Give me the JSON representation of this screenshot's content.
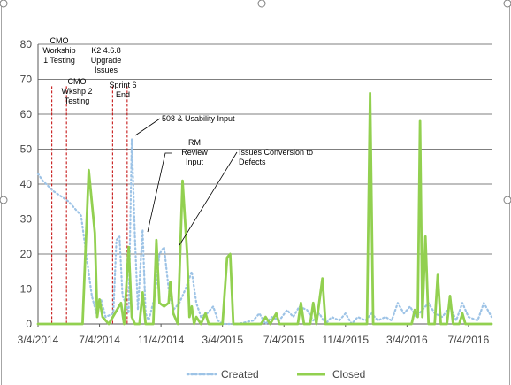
{
  "chart_data": {
    "type": "line",
    "title": "",
    "xlabel": "",
    "ylabel": "",
    "ylim": [
      0,
      80
    ],
    "y_ticks": [
      "0",
      "10",
      "20",
      "30",
      "40",
      "50",
      "60",
      "70",
      "80"
    ],
    "x_tick_labels": [
      "3/4/2014",
      "7/4/2014",
      "11/4/2014",
      "3/4/2015",
      "7/4/2015",
      "11/4/2015",
      "3/4/2016",
      "7/4/2016"
    ],
    "x_range_months": [
      0,
      29.5
    ],
    "grid": true,
    "legend_position": "bottom",
    "series": [
      {
        "name": "Created",
        "style": "dotted",
        "color": "#9DC3E6",
        "points": [
          [
            0,
            43
          ],
          [
            0.3,
            41
          ],
          [
            1,
            38
          ],
          [
            2,
            35
          ],
          [
            2.8,
            31
          ],
          [
            3.2,
            18
          ],
          [
            3.5,
            8
          ],
          [
            3.8,
            3
          ],
          [
            4.1,
            7
          ],
          [
            4.4,
            2
          ],
          [
            4.9,
            3
          ],
          [
            5.1,
            24
          ],
          [
            5.3,
            25
          ],
          [
            5.5,
            8
          ],
          [
            5.7,
            6
          ],
          [
            5.9,
            3
          ],
          [
            6.1,
            53
          ],
          [
            6.3,
            25
          ],
          [
            6.5,
            4
          ],
          [
            6.8,
            27
          ],
          [
            7.0,
            3
          ],
          [
            7.2,
            1
          ],
          [
            7.6,
            8
          ],
          [
            7.9,
            20
          ],
          [
            8.2,
            22
          ],
          [
            8.5,
            10
          ],
          [
            8.8,
            4
          ],
          [
            9.2,
            6
          ],
          [
            9.6,
            10
          ],
          [
            10.0,
            15
          ],
          [
            10.3,
            6
          ],
          [
            10.6,
            2
          ],
          [
            11.0,
            3
          ],
          [
            11.4,
            5
          ],
          [
            11.7,
            1
          ],
          [
            12.0,
            0
          ],
          [
            13.0,
            0
          ],
          [
            14.0,
            1
          ],
          [
            14.4,
            3
          ],
          [
            14.8,
            0
          ],
          [
            15.2,
            2
          ],
          [
            15.7,
            1
          ],
          [
            16.2,
            4
          ],
          [
            16.6,
            2
          ],
          [
            17.0,
            5
          ],
          [
            17.5,
            4
          ],
          [
            17.9,
            1
          ],
          [
            18.3,
            3
          ],
          [
            18.7,
            0
          ],
          [
            19.1,
            2
          ],
          [
            19.6,
            1
          ],
          [
            20.0,
            3
          ],
          [
            20.4,
            0
          ],
          [
            20.8,
            2
          ],
          [
            21.3,
            1
          ],
          [
            21.7,
            3
          ],
          [
            22.1,
            1
          ],
          [
            22.6,
            2
          ],
          [
            23.0,
            1
          ],
          [
            23.4,
            6
          ],
          [
            23.8,
            3
          ],
          [
            24.2,
            5
          ],
          [
            24.6,
            2
          ],
          [
            25.0,
            4
          ],
          [
            25.4,
            6
          ],
          [
            25.8,
            3
          ],
          [
            26.3,
            2
          ],
          [
            26.8,
            5
          ],
          [
            27.2,
            1
          ],
          [
            27.6,
            6
          ],
          [
            28.0,
            2
          ],
          [
            28.6,
            1
          ],
          [
            29.0,
            6
          ],
          [
            29.5,
            2
          ]
        ]
      },
      {
        "name": "Closed",
        "style": "solid",
        "color": "#92D050",
        "points": [
          [
            0,
            0
          ],
          [
            2.9,
            0
          ],
          [
            3.3,
            44
          ],
          [
            3.7,
            26
          ],
          [
            3.85,
            2
          ],
          [
            4.0,
            7
          ],
          [
            4.2,
            2
          ],
          [
            4.6,
            0
          ],
          [
            5.4,
            6
          ],
          [
            5.6,
            0
          ],
          [
            5.9,
            22
          ],
          [
            6.1,
            2
          ],
          [
            6.3,
            0
          ],
          [
            6.6,
            0
          ],
          [
            6.8,
            9
          ],
          [
            7.0,
            0
          ],
          [
            7.5,
            0
          ],
          [
            7.7,
            24
          ],
          [
            7.9,
            6
          ],
          [
            8.2,
            5
          ],
          [
            8.5,
            6
          ],
          [
            8.6,
            12
          ],
          [
            8.8,
            3
          ],
          [
            9.1,
            0
          ],
          [
            9.4,
            41
          ],
          [
            9.7,
            20
          ],
          [
            9.85,
            2
          ],
          [
            10.0,
            5
          ],
          [
            10.15,
            0
          ],
          [
            10.3,
            2
          ],
          [
            10.6,
            0
          ],
          [
            10.9,
            3
          ],
          [
            11.1,
            0
          ],
          [
            12.0,
            0
          ],
          [
            12.3,
            19
          ],
          [
            12.5,
            20
          ],
          [
            12.7,
            0
          ],
          [
            14.5,
            0
          ],
          [
            14.8,
            2
          ],
          [
            15.1,
            0
          ],
          [
            15.5,
            3
          ],
          [
            15.7,
            0
          ],
          [
            16.9,
            0
          ],
          [
            17.1,
            6
          ],
          [
            17.3,
            0
          ],
          [
            17.7,
            0
          ],
          [
            17.9,
            6
          ],
          [
            18.1,
            0
          ],
          [
            18.5,
            13
          ],
          [
            18.7,
            0
          ],
          [
            21.4,
            0
          ],
          [
            21.6,
            66
          ],
          [
            21.8,
            0
          ],
          [
            24.3,
            0
          ],
          [
            24.5,
            4
          ],
          [
            24.7,
            2
          ],
          [
            24.85,
            58
          ],
          [
            25.0,
            2
          ],
          [
            25.2,
            25
          ],
          [
            25.4,
            0
          ],
          [
            25.8,
            0
          ],
          [
            26.0,
            14
          ],
          [
            26.2,
            0
          ],
          [
            26.6,
            0
          ],
          [
            26.8,
            8
          ],
          [
            27.0,
            0
          ],
          [
            27.4,
            0
          ],
          [
            27.6,
            3
          ],
          [
            27.8,
            0
          ],
          [
            29.5,
            0
          ]
        ]
      }
    ],
    "annotations": [
      {
        "lines": [
          "CMO",
          "Workship",
          "1 Testing"
        ],
        "x": 0.9
      },
      {
        "lines": [
          "CMO",
          "Wkshp 2",
          "Testing"
        ],
        "x": 1.85
      },
      {
        "lines": [
          "K2 4.6.8",
          "Upgrade",
          "Issues"
        ],
        "x": 4.85
      },
      {
        "lines": [
          "Sprint 6",
          "End"
        ],
        "x": 5.8
      },
      {
        "lines": [
          "508 & Usability Input"
        ],
        "x": 6.9
      },
      {
        "lines": [
          "RM",
          "Review",
          "Input"
        ],
        "x": 8.6
      },
      {
        "lines": [
          "Issues Conversion to",
          "Defects"
        ],
        "x": 12.9
      }
    ],
    "milestones_x": [
      0.9,
      1.85,
      4.85,
      5.8
    ]
  }
}
